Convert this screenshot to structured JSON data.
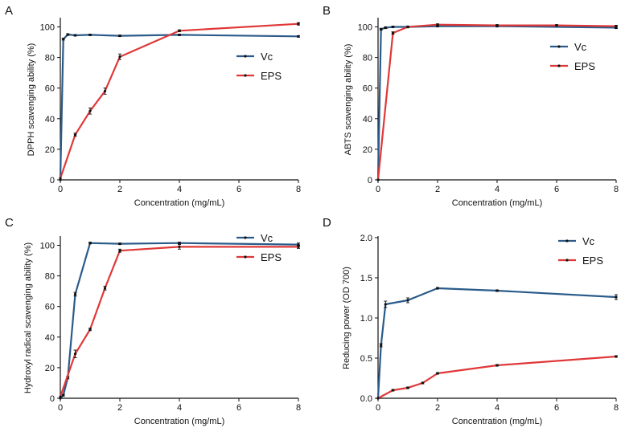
{
  "colors": {
    "vc": "#2a5b8a",
    "eps": "#e03838",
    "axis": "#111111"
  },
  "chart_data": [
    {
      "type": "line",
      "panel": "A",
      "xlabel": "Concentration (mg/mL)",
      "ylabel": "DPPH scavenging ability (%)",
      "xlim": [
        0,
        8
      ],
      "ylim": [
        0,
        105
      ],
      "xticks": [
        0,
        2,
        4,
        6,
        8
      ],
      "yticks": [
        0,
        20,
        40,
        60,
        80,
        100
      ],
      "legend": "right",
      "series": [
        {
          "name": "Vc",
          "x": [
            0,
            0.1,
            0.25,
            0.5,
            1,
            2,
            4,
            8
          ],
          "y": [
            0,
            92,
            95,
            94.5,
            94.8,
            94.2,
            94.8,
            93.8
          ],
          "err": [
            0,
            0.6,
            0.6,
            0.5,
            0.5,
            0.5,
            0.5,
            0.5
          ]
        },
        {
          "name": "EPS",
          "x": [
            0,
            0.5,
            1,
            1.5,
            2,
            4,
            8
          ],
          "y": [
            1,
            29.5,
            45,
            58,
            80.5,
            97.5,
            102
          ],
          "err": [
            0,
            1,
            2,
            2,
            1.8,
            0.6,
            0.8
          ]
        }
      ]
    },
    {
      "type": "line",
      "panel": "B",
      "xlabel": "Concentration (mg/mL)",
      "ylabel": "ABTS scavenging ability (%)",
      "xlim": [
        0,
        8
      ],
      "ylim": [
        0,
        105
      ],
      "xticks": [
        0,
        2,
        4,
        6,
        8
      ],
      "yticks": [
        0,
        20,
        40,
        60,
        80,
        100
      ],
      "legend": "right",
      "series": [
        {
          "name": "Vc",
          "x": [
            0,
            0.1,
            0.25,
            0.5,
            1,
            2,
            4,
            8
          ],
          "y": [
            0,
            98.5,
            99.5,
            100,
            100,
            100.5,
            100.5,
            99.5
          ],
          "err": [
            0,
            0.6,
            0.6,
            0.5,
            0.5,
            0.5,
            0.5,
            0.6
          ]
        },
        {
          "name": "EPS",
          "x": [
            0,
            0.5,
            1,
            2,
            4,
            6,
            8
          ],
          "y": [
            0,
            96,
            100,
            101.5,
            101,
            101,
            100.5
          ],
          "err": [
            0,
            0.8,
            0.6,
            0.5,
            0.5,
            0.5,
            0.5
          ]
        }
      ]
    },
    {
      "type": "line",
      "panel": "C",
      "xlabel": "Concentration (mg/mL)",
      "ylabel": "Hydroxyl radical scavenging ability (%)",
      "xlim": [
        0,
        8
      ],
      "ylim": [
        0,
        105
      ],
      "xticks": [
        0,
        2,
        4,
        6,
        8
      ],
      "yticks": [
        0,
        20,
        40,
        60,
        80,
        100
      ],
      "legend": "right",
      "series": [
        {
          "name": "Vc",
          "x": [
            0,
            0.1,
            0.25,
            0.5,
            1,
            2,
            4,
            8
          ],
          "y": [
            0,
            2,
            13.5,
            68,
            101.5,
            101,
            101.5,
            100.5
          ],
          "err": [
            0,
            0.6,
            0.8,
            1.2,
            0.6,
            0.5,
            0.6,
            1
          ]
        },
        {
          "name": "EPS",
          "x": [
            0,
            0.5,
            1,
            1.5,
            2,
            4,
            8
          ],
          "y": [
            1,
            29,
            45,
            72,
            96.5,
            99,
            99
          ],
          "err": [
            0,
            2.5,
            0.8,
            1.2,
            1,
            1.5,
            1
          ]
        }
      ]
    },
    {
      "type": "line",
      "panel": "D",
      "xlabel": "Concentration (mg/mL)",
      "ylabel": "Reducing power (OD 700)",
      "xlim": [
        0,
        8
      ],
      "ylim": [
        0,
        2.0
      ],
      "xticks": [
        0,
        2,
        4,
        6,
        8
      ],
      "yticks": [
        "0.0",
        "0.5",
        "1.0",
        "1.5",
        "2.0"
      ],
      "legend": "right",
      "series": [
        {
          "name": "Vc",
          "x": [
            0,
            0.1,
            0.25,
            1,
            2,
            4,
            8
          ],
          "y": [
            0,
            0.66,
            1.17,
            1.22,
            1.37,
            1.34,
            1.26
          ],
          "err": [
            0,
            0.02,
            0.04,
            0.03,
            0.01,
            0.01,
            0.03
          ]
        },
        {
          "name": "EPS",
          "x": [
            0,
            0.5,
            1,
            1.5,
            2,
            4,
            8
          ],
          "y": [
            0,
            0.1,
            0.13,
            0.19,
            0.31,
            0.41,
            0.52
          ],
          "err": [
            0,
            0.01,
            0.01,
            0.01,
            0.01,
            0.01,
            0.01
          ]
        }
      ]
    }
  ]
}
